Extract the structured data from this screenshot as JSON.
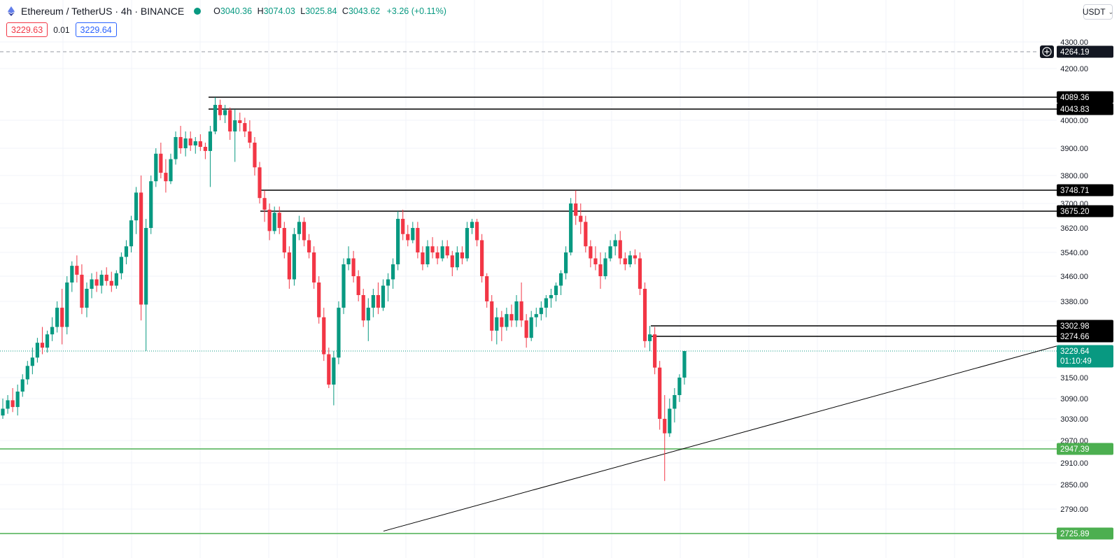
{
  "header": {
    "symbol": "Ethereum / TetherUS · 4h · BINANCE",
    "ohlc": {
      "o_label": "O",
      "o": "3040.36",
      "h_label": "H",
      "h": "3074.03",
      "l_label": "L",
      "l": "3025.84",
      "c_label": "C",
      "c": "3043.62",
      "change": "+3.26 (+0.11%)"
    },
    "sell_price": "3229.63",
    "spread": "0.01",
    "buy_price": "3229.64",
    "currency": "USDT"
  },
  "colors": {
    "up": "#089981",
    "down": "#f23645",
    "support": "#4caf50",
    "level": "#000000",
    "grid": "#f0f3fa"
  },
  "chart_data": {
    "type": "candlestick",
    "y_ticks": [
      "4300.00",
      "4200.00",
      "4000.00",
      "3900.00",
      "3800.00",
      "3700.00",
      "3620.00",
      "3540.00",
      "3460.00",
      "3380.00",
      "3150.00",
      "3090.00",
      "3030.00",
      "2970.00",
      "2910.00",
      "2850.00",
      "2790.00"
    ],
    "crosshair_level": "4264.19",
    "current_price": "3229.64",
    "countdown": "01:10:49",
    "resistance_levels": [
      "4089.36",
      "4043.83",
      "3748.71",
      "3675.20",
      "3302.98",
      "3274.66"
    ],
    "support_levels": [
      "2947.39",
      "2725.89"
    ],
    "trendline": {
      "from_price": 2675,
      "to_price": 3245
    },
    "candles_ohlc": [
      [
        3040,
        3090,
        3030,
        3060
      ],
      [
        3060,
        3100,
        3045,
        3085
      ],
      [
        3085,
        3120,
        3050,
        3065
      ],
      [
        3065,
        3130,
        3040,
        3110
      ],
      [
        3110,
        3160,
        3095,
        3145
      ],
      [
        3145,
        3200,
        3130,
        3185
      ],
      [
        3185,
        3240,
        3160,
        3210
      ],
      [
        3210,
        3270,
        3195,
        3255
      ],
      [
        3255,
        3300,
        3220,
        3240
      ],
      [
        3240,
        3290,
        3225,
        3280
      ],
      [
        3280,
        3330,
        3260,
        3300
      ],
      [
        3300,
        3380,
        3285,
        3360
      ],
      [
        3360,
        3420,
        3250,
        3300
      ],
      [
        3300,
        3460,
        3280,
        3440
      ],
      [
        3440,
        3510,
        3410,
        3495
      ],
      [
        3495,
        3530,
        3440,
        3465
      ],
      [
        3465,
        3500,
        3340,
        3360
      ],
      [
        3360,
        3440,
        3330,
        3420
      ],
      [
        3420,
        3470,
        3390,
        3450
      ],
      [
        3450,
        3475,
        3410,
        3430
      ],
      [
        3430,
        3480,
        3405,
        3465
      ],
      [
        3465,
        3490,
        3430,
        3445
      ],
      [
        3445,
        3475,
        3410,
        3430
      ],
      [
        3430,
        3480,
        3420,
        3470
      ],
      [
        3470,
        3540,
        3450,
        3525
      ],
      [
        3525,
        3580,
        3500,
        3560
      ],
      [
        3560,
        3660,
        3540,
        3645
      ],
      [
        3645,
        3760,
        3600,
        3740
      ],
      [
        3740,
        3800,
        3320,
        3370
      ],
      [
        3370,
        3650,
        3230,
        3620
      ],
      [
        3620,
        3800,
        3600,
        3780
      ],
      [
        3780,
        3900,
        3760,
        3880
      ],
      [
        3880,
        3920,
        3790,
        3810
      ],
      [
        3810,
        3860,
        3740,
        3780
      ],
      [
        3780,
        3880,
        3770,
        3860
      ],
      [
        3860,
        3960,
        3840,
        3940
      ],
      [
        3940,
        3980,
        3880,
        3900
      ],
      [
        3900,
        3960,
        3870,
        3935
      ],
      [
        3935,
        3960,
        3890,
        3910
      ],
      [
        3910,
        3940,
        3880,
        3925
      ],
      [
        3925,
        3950,
        3890,
        3905
      ],
      [
        3905,
        3920,
        3860,
        3890
      ],
      [
        3890,
        3980,
        3760,
        3960
      ],
      [
        3960,
        4089,
        3950,
        4060
      ],
      [
        4060,
        4080,
        4000,
        4020
      ],
      [
        4020,
        4060,
        3990,
        4040
      ],
      [
        4040,
        4050,
        3930,
        3960
      ],
      [
        3960,
        4043,
        3850,
        4000
      ],
      [
        4000,
        4030,
        3960,
        3990
      ],
      [
        3990,
        4010,
        3940,
        3960
      ],
      [
        3960,
        4000,
        3900,
        3920
      ],
      [
        3920,
        3940,
        3800,
        3830
      ],
      [
        3830,
        3850,
        3700,
        3720
      ],
      [
        3720,
        3748,
        3640,
        3680
      ],
      [
        3680,
        3700,
        3580,
        3610
      ],
      [
        3610,
        3690,
        3600,
        3670
      ],
      [
        3670,
        3690,
        3600,
        3620
      ],
      [
        3620,
        3640,
        3520,
        3540
      ],
      [
        3540,
        3560,
        3420,
        3450
      ],
      [
        3450,
        3620,
        3430,
        3600
      ],
      [
        3600,
        3660,
        3580,
        3640
      ],
      [
        3640,
        3655,
        3560,
        3580
      ],
      [
        3580,
        3600,
        3520,
        3540
      ],
      [
        3540,
        3560,
        3420,
        3440
      ],
      [
        3440,
        3460,
        3310,
        3330
      ],
      [
        3330,
        3360,
        3200,
        3220
      ],
      [
        3220,
        3240,
        3120,
        3130
      ],
      [
        3130,
        3230,
        3070,
        3210
      ],
      [
        3210,
        3380,
        3190,
        3360
      ],
      [
        3360,
        3520,
        3340,
        3500
      ],
      [
        3500,
        3560,
        3480,
        3520
      ],
      [
        3520,
        3545,
        3440,
        3460
      ],
      [
        3460,
        3480,
        3380,
        3400
      ],
      [
        3400,
        3420,
        3300,
        3320
      ],
      [
        3320,
        3390,
        3260,
        3360
      ],
      [
        3360,
        3420,
        3330,
        3400
      ],
      [
        3400,
        3440,
        3340,
        3360
      ],
      [
        3360,
        3450,
        3350,
        3430
      ],
      [
        3430,
        3470,
        3380,
        3450
      ],
      [
        3450,
        3520,
        3420,
        3500
      ],
      [
        3500,
        3675,
        3480,
        3650
      ],
      [
        3650,
        3680,
        3580,
        3600
      ],
      [
        3600,
        3630,
        3560,
        3580
      ],
      [
        3580,
        3640,
        3570,
        3620
      ],
      [
        3620,
        3640,
        3520,
        3540
      ],
      [
        3540,
        3560,
        3480,
        3500
      ],
      [
        3500,
        3580,
        3490,
        3560
      ],
      [
        3560,
        3590,
        3520,
        3540
      ],
      [
        3540,
        3560,
        3500,
        3520
      ],
      [
        3520,
        3580,
        3510,
        3560
      ],
      [
        3560,
        3580,
        3520,
        3530
      ],
      [
        3530,
        3545,
        3460,
        3490
      ],
      [
        3490,
        3560,
        3480,
        3540
      ],
      [
        3540,
        3560,
        3500,
        3520
      ],
      [
        3520,
        3640,
        3510,
        3620
      ],
      [
        3620,
        3650,
        3600,
        3640
      ],
      [
        3640,
        3650,
        3560,
        3580
      ],
      [
        3580,
        3600,
        3440,
        3460
      ],
      [
        3460,
        3470,
        3360,
        3380
      ],
      [
        3380,
        3400,
        3260,
        3290
      ],
      [
        3290,
        3360,
        3250,
        3330
      ],
      [
        3330,
        3350,
        3260,
        3300
      ],
      [
        3300,
        3360,
        3290,
        3340
      ],
      [
        3340,
        3370,
        3300,
        3320
      ],
      [
        3320,
        3400,
        3300,
        3380
      ],
      [
        3380,
        3440,
        3300,
        3320
      ],
      [
        3320,
        3340,
        3240,
        3270
      ],
      [
        3270,
        3350,
        3260,
        3330
      ],
      [
        3330,
        3360,
        3300,
        3340
      ],
      [
        3340,
        3380,
        3320,
        3360
      ],
      [
        3360,
        3400,
        3330,
        3390
      ],
      [
        3390,
        3420,
        3360,
        3400
      ],
      [
        3400,
        3440,
        3380,
        3430
      ],
      [
        3430,
        3480,
        3400,
        3470
      ],
      [
        3470,
        3560,
        3450,
        3540
      ],
      [
        3540,
        3720,
        3530,
        3700
      ],
      [
        3700,
        3748,
        3630,
        3660
      ],
      [
        3660,
        3700,
        3600,
        3640
      ],
      [
        3640,
        3660,
        3540,
        3560
      ],
      [
        3560,
        3580,
        3490,
        3520
      ],
      [
        3520,
        3560,
        3480,
        3500
      ],
      [
        3500,
        3540,
        3420,
        3460
      ],
      [
        3460,
        3540,
        3450,
        3520
      ],
      [
        3520,
        3580,
        3510,
        3560
      ],
      [
        3560,
        3600,
        3530,
        3580
      ],
      [
        3580,
        3610,
        3500,
        3520
      ],
      [
        3520,
        3540,
        3480,
        3500
      ],
      [
        3500,
        3545,
        3490,
        3530
      ],
      [
        3530,
        3550,
        3500,
        3520
      ],
      [
        3520,
        3540,
        3400,
        3420
      ],
      [
        3420,
        3440,
        3240,
        3260
      ],
      [
        3260,
        3303,
        3230,
        3280
      ],
      [
        3280,
        3300,
        3160,
        3180
      ],
      [
        3180,
        3200,
        3000,
        3030
      ],
      [
        3030,
        3100,
        2860,
        2990
      ],
      [
        2990,
        3090,
        2980,
        3060
      ],
      [
        3060,
        3120,
        3020,
        3100
      ],
      [
        3100,
        3160,
        3080,
        3150
      ],
      [
        3150,
        3230,
        3130,
        3229.64
      ]
    ]
  }
}
